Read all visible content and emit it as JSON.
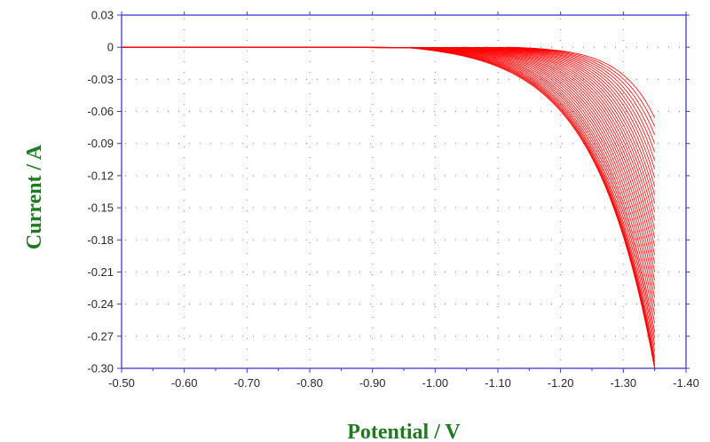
{
  "chart_data": {
    "type": "line",
    "title": "",
    "xlabel": "Potential / V",
    "ylabel": "Current / A",
    "xlim": [
      -0.5,
      -1.4
    ],
    "ylim": [
      -0.3,
      0.03
    ],
    "x_ticks": [
      "-0.50",
      "-0.60",
      "-0.70",
      "-0.80",
      "-0.90",
      "-1.00",
      "-1.10",
      "-1.20",
      "-1.30",
      "-1.40"
    ],
    "y_ticks": [
      "0.03",
      "0",
      "-0.03",
      "-0.06",
      "-0.09",
      "-0.12",
      "-0.15",
      "-0.18",
      "-0.21",
      "-0.24",
      "-0.27",
      "-0.30"
    ],
    "grid": true,
    "line_color": "#ff0000",
    "series_count": 36,
    "x_start": -0.5,
    "x_end": -1.35,
    "end_currents": [
      -0.066,
      -0.074,
      -0.082,
      -0.09,
      -0.098,
      -0.106,
      -0.114,
      -0.122,
      -0.13,
      -0.138,
      -0.146,
      -0.154,
      -0.162,
      -0.17,
      -0.178,
      -0.186,
      -0.194,
      -0.202,
      -0.21,
      -0.218,
      -0.226,
      -0.234,
      -0.242,
      -0.25,
      -0.258,
      -0.266,
      -0.272,
      -0.278,
      -0.284,
      -0.29,
      -0.294,
      -0.297,
      -0.299,
      -0.3,
      -0.3,
      -0.3
    ],
    "onset_potentials": [
      -1.12,
      -1.115,
      -1.11,
      -1.105,
      -1.1,
      -1.095,
      -1.09,
      -1.085,
      -1.08,
      -1.075,
      -1.07,
      -1.065,
      -1.06,
      -1.055,
      -1.05,
      -1.045,
      -1.04,
      -1.035,
      -1.03,
      -1.025,
      -1.02,
      -1.015,
      -1.01,
      -1.005,
      -1.0,
      -0.995,
      -0.99,
      -0.985,
      -0.98,
      -0.975,
      -0.97,
      -0.965,
      -0.96,
      -0.955,
      -0.95,
      -0.945
    ]
  }
}
